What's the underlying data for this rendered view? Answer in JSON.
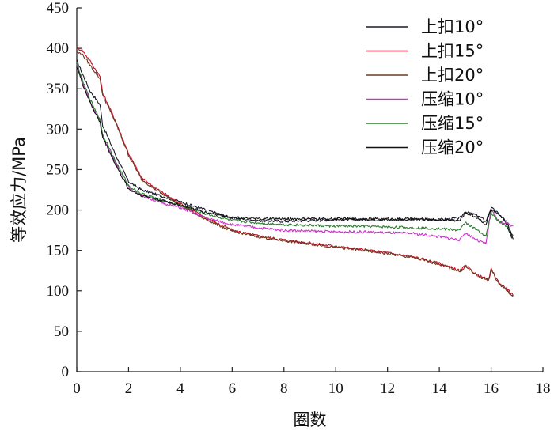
{
  "chart_data": {
    "type": "line",
    "xlabel": "圈数",
    "ylabel": "等效应力/MPa",
    "xlim": [
      0,
      18
    ],
    "ylim": [
      0,
      450
    ],
    "xticks": [
      0,
      2,
      4,
      6,
      8,
      10,
      12,
      14,
      16,
      18
    ],
    "yticks": [
      0,
      50,
      100,
      150,
      200,
      250,
      300,
      350,
      400,
      450
    ],
    "grid": false,
    "legend_position": "top-right",
    "series": [
      {
        "name": "上扣10°",
        "color": "#1a1a2e",
        "x": [
          0,
          0.2,
          0.5,
          0.9,
          1.0,
          1.5,
          2,
          2.5,
          3,
          3.5,
          4,
          5,
          6,
          7,
          8,
          9,
          10,
          11,
          12,
          13,
          14,
          14.8,
          15.0,
          15.5,
          15.8,
          16.0,
          16.3,
          16.5,
          16.8
        ],
        "y": [
          385,
          370,
          348,
          330,
          305,
          268,
          235,
          225,
          220,
          215,
          210,
          200,
          190,
          187,
          186,
          187,
          188,
          188,
          188,
          188,
          188,
          190,
          198,
          193,
          186,
          203,
          195,
          188,
          165
        ]
      },
      {
        "name": "上扣15°",
        "color": "#c8102e",
        "x": [
          0,
          0.2,
          0.5,
          0.9,
          1.0,
          1.5,
          2,
          2.5,
          3,
          3.5,
          4,
          5,
          6,
          7,
          8,
          9,
          10,
          11,
          12,
          13,
          14,
          14.8,
          15.0,
          15.5,
          15.9,
          16.0,
          16.3,
          16.6,
          16.85
        ],
        "y": [
          400,
          398,
          385,
          365,
          345,
          310,
          270,
          240,
          228,
          218,
          208,
          190,
          175,
          168,
          163,
          159,
          155,
          151,
          147,
          142,
          134,
          125,
          131,
          119,
          114,
          127,
          110,
          103,
          94
        ]
      },
      {
        "name": "上扣20°",
        "color": "#6b3a1e",
        "x": [
          0,
          0.2,
          0.5,
          0.9,
          1.0,
          1.5,
          2,
          2.5,
          3,
          3.5,
          4,
          5,
          6,
          7,
          8,
          9,
          10,
          11,
          12,
          13,
          14,
          14.8,
          15.0,
          15.5,
          15.9,
          16.0,
          16.3,
          16.6,
          16.85
        ],
        "y": [
          395,
          393,
          380,
          362,
          342,
          308,
          268,
          238,
          226,
          216,
          206,
          188,
          174,
          167,
          162,
          158,
          154,
          150,
          146,
          141,
          133,
          124,
          130,
          118,
          113,
          126,
          109,
          101,
          92
        ]
      },
      {
        "name": "压缩10°",
        "color": "#cc33cc",
        "x": [
          0,
          0.2,
          0.5,
          0.9,
          1.0,
          1.5,
          2,
          2.5,
          3,
          3.5,
          4,
          5,
          6,
          7,
          8,
          9,
          10,
          11,
          12,
          13,
          14,
          14.8,
          15.0,
          15.5,
          15.8,
          16.0,
          16.3,
          16.6,
          16.85
        ],
        "y": [
          380,
          360,
          335,
          310,
          292,
          258,
          228,
          218,
          212,
          207,
          203,
          190,
          182,
          178,
          175,
          174,
          173,
          173,
          172,
          171,
          167,
          163,
          172,
          162,
          158,
          200,
          185,
          184,
          180
        ]
      },
      {
        "name": "压缩15°",
        "color": "#2e7d32",
        "x": [
          0,
          0.2,
          0.5,
          0.9,
          1.0,
          1.5,
          2,
          2.5,
          3,
          3.5,
          4,
          5,
          6,
          7,
          8,
          9,
          10,
          11,
          12,
          13,
          14,
          14.8,
          15.0,
          15.5,
          15.8,
          16.0,
          16.3,
          16.6,
          16.85
        ],
        "y": [
          382,
          362,
          338,
          312,
          294,
          260,
          230,
          220,
          215,
          210,
          206,
          195,
          187,
          184,
          182,
          181,
          180,
          180,
          179,
          178,
          177,
          175,
          185,
          174,
          168,
          196,
          186,
          180,
          168
        ]
      },
      {
        "name": "压缩20°",
        "color": "#111111",
        "x": [
          0,
          0.2,
          0.5,
          0.9,
          1.0,
          1.5,
          2,
          2.5,
          3,
          3.5,
          4,
          5,
          6,
          7,
          8,
          9,
          10,
          11,
          12,
          13,
          14,
          14.8,
          15.0,
          15.5,
          15.8,
          16.0,
          16.3,
          16.6,
          16.85
        ],
        "y": [
          378,
          358,
          334,
          308,
          290,
          256,
          226,
          218,
          214,
          210,
          206,
          197,
          191,
          189,
          189,
          189,
          189,
          189,
          189,
          189,
          188,
          187,
          197,
          190,
          182,
          201,
          193,
          186,
          164
        ]
      }
    ]
  }
}
